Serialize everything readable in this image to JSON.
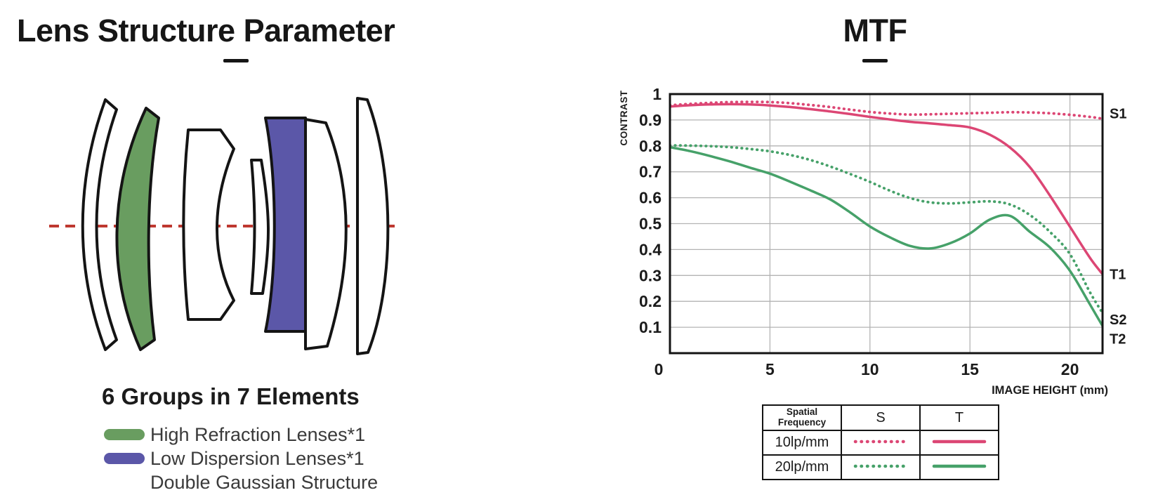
{
  "lens_section": {
    "title": "Lens Structure Parameter",
    "caption": "6 Groups in 7 Elements",
    "legend": {
      "high_refraction": {
        "label": "High Refraction Lenses*1",
        "color": "#699d60"
      },
      "low_dispersion": {
        "label": "Low Dispersion Lenses*1",
        "color": "#5b57a8"
      },
      "structure_note": "Double Gaussian Structure"
    },
    "optical_axis_color": "#be3830",
    "outline_color": "#141414"
  },
  "mtf_section": {
    "title": "MTF",
    "legend_table": {
      "col_headers": {
        "frequency": "Spatial Frequency",
        "s": "S",
        "t": "T"
      },
      "rows": [
        {
          "frequency": "10lp/mm",
          "color": "#dc4674",
          "s_style": "dotted",
          "t_style": "solid"
        },
        {
          "frequency": "20lp/mm",
          "color": "#46a169",
          "s_style": "dotted",
          "t_style": "solid"
        }
      ]
    }
  },
  "chart_data": {
    "type": "line",
    "title": "MTF",
    "xlabel": "IMAGE HEIGHT (mm)",
    "ylabel": "CONTRAST",
    "xlim": [
      0,
      21.63
    ],
    "ylim": [
      0,
      1
    ],
    "x_ticks": [
      0,
      5,
      10,
      15,
      20
    ],
    "y_ticks": [
      0,
      0.1,
      0.2,
      0.3,
      0.4,
      0.5,
      0.6,
      0.7,
      0.8,
      0.9,
      1
    ],
    "grid": true,
    "legend_position": "bottom-table",
    "x": [
      0,
      1,
      2,
      3,
      4,
      5,
      6,
      7,
      8,
      9,
      10,
      11,
      12,
      13,
      14,
      15,
      16,
      17,
      18,
      19,
      20,
      21,
      21.63
    ],
    "series": [
      {
        "name": "S1",
        "frequency": "10lp/mm",
        "orientation": "sagittal",
        "style": "dotted",
        "color": "#dc4674",
        "label_y": 0.925,
        "y": [
          0.957,
          0.962,
          0.966,
          0.969,
          0.97,
          0.969,
          0.965,
          0.958,
          0.95,
          0.94,
          0.931,
          0.925,
          0.921,
          0.922,
          0.924,
          0.926,
          0.928,
          0.93,
          0.929,
          0.926,
          0.92,
          0.912,
          0.905
        ]
      },
      {
        "name": "T1",
        "frequency": "10lp/mm",
        "orientation": "tangential",
        "style": "solid",
        "color": "#dc4674",
        "label_y": 0.305,
        "y": [
          0.952,
          0.957,
          0.96,
          0.961,
          0.96,
          0.956,
          0.95,
          0.942,
          0.933,
          0.923,
          0.912,
          0.902,
          0.893,
          0.887,
          0.88,
          0.871,
          0.843,
          0.794,
          0.718,
          0.608,
          0.488,
          0.368,
          0.305
        ]
      },
      {
        "name": "S2",
        "frequency": "20lp/mm",
        "orientation": "sagittal",
        "style": "dotted",
        "color": "#46a169",
        "label_y": 0.13,
        "y": [
          0.802,
          0.801,
          0.799,
          0.795,
          0.788,
          0.779,
          0.765,
          0.746,
          0.721,
          0.692,
          0.661,
          0.627,
          0.599,
          0.582,
          0.578,
          0.582,
          0.586,
          0.574,
          0.533,
          0.468,
          0.382,
          0.235,
          0.155
        ]
      },
      {
        "name": "T2",
        "frequency": "20lp/mm",
        "orientation": "tangential",
        "style": "solid",
        "color": "#46a169",
        "label_y": 0.055,
        "y": [
          0.795,
          0.78,
          0.761,
          0.74,
          0.716,
          0.693,
          0.662,
          0.629,
          0.594,
          0.544,
          0.489,
          0.447,
          0.414,
          0.404,
          0.424,
          0.462,
          0.516,
          0.53,
          0.468,
          0.408,
          0.318,
          0.188,
          0.105
        ]
      }
    ]
  }
}
